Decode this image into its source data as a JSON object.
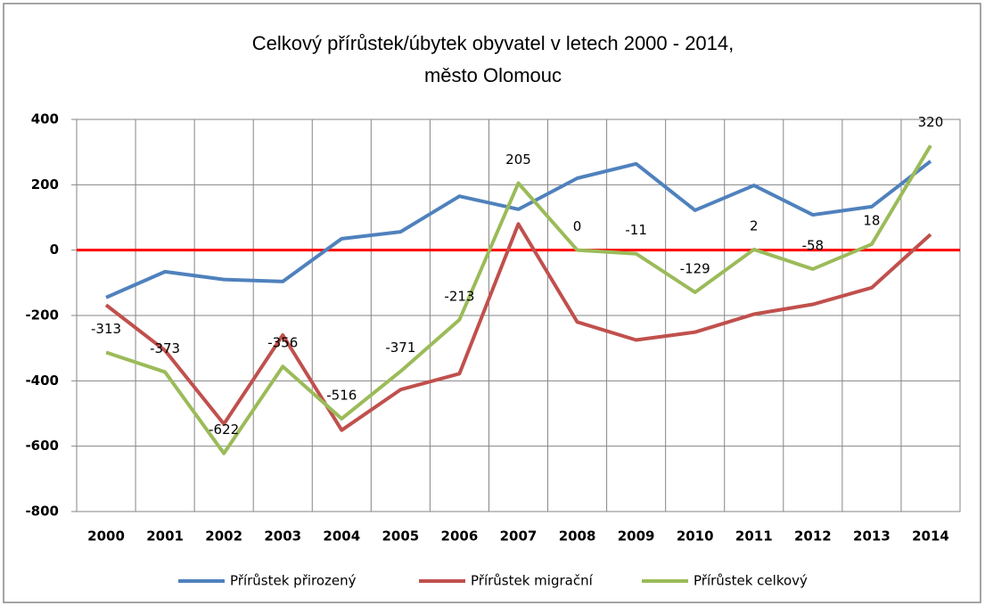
{
  "chart_data": {
    "type": "line",
    "title": "Celkový přírůstek/úbytek obyvatel v letech 2000 - 2014,",
    "subtitle": "město Olomouc",
    "categories": [
      "2000",
      "2001",
      "2002",
      "2003",
      "2004",
      "2005",
      "2006",
      "2007",
      "2008",
      "2009",
      "2010",
      "2011",
      "2012",
      "2013",
      "2014"
    ],
    "series": [
      {
        "name": "Přírůstek přirozený",
        "color": "#4f81bd",
        "values": [
          -145,
          -66,
          -90,
          -96,
          35,
          56,
          165,
          125,
          220,
          264,
          122,
          198,
          108,
          133,
          272
        ]
      },
      {
        "name": "Přírůstek migrační",
        "color": "#c0504d",
        "values": [
          -168,
          -307,
          -532,
          -260,
          -551,
          -427,
          -378,
          80,
          -220,
          -275,
          -251,
          -196,
          -166,
          -115,
          48
        ]
      },
      {
        "name": "Přírůstek celkový",
        "color": "#9bbb59",
        "values": [
          -313,
          -373,
          -622,
          -356,
          -516,
          -371,
          -213,
          205,
          0,
          -11,
          -129,
          2,
          -58,
          18,
          320
        ],
        "data_labels": true
      }
    ],
    "ylim": [
      -800,
      400
    ],
    "yticks": [
      -800,
      -600,
      -400,
      -200,
      0,
      200,
      400
    ],
    "grid": true,
    "zero_line_color": "#ff0000",
    "legend": "bottom"
  }
}
